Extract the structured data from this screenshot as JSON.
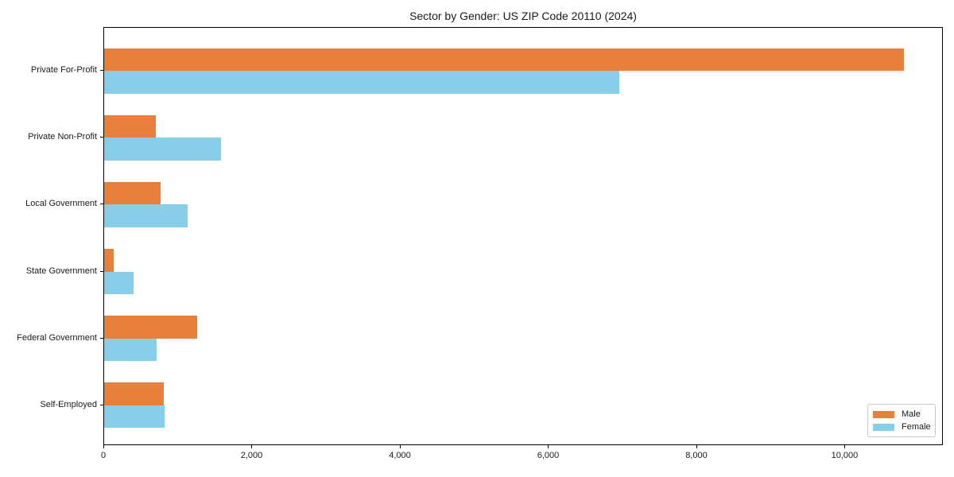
{
  "chart_data": {
    "type": "bar",
    "orientation": "horizontal",
    "title": "Sector by Gender: US ZIP Code 20110 (2024)",
    "categories": [
      "Private For-Profit",
      "Private Non-Profit",
      "Local Government",
      "State Government",
      "Federal Government",
      "Self-Employed"
    ],
    "series": [
      {
        "name": "Male",
        "color": "#E8803C",
        "values": [
          10790,
          700,
          765,
          130,
          1260,
          800
        ]
      },
      {
        "name": "Female",
        "color": "#87CEEB",
        "values": [
          6950,
          1580,
          1130,
          400,
          710,
          820
        ]
      }
    ],
    "xlabel": "",
    "ylabel": "",
    "xlim": [
      0,
      11325
    ],
    "xticks": [
      0,
      2000,
      4000,
      6000,
      8000,
      10000
    ],
    "xtick_labels": [
      "0",
      "2,000",
      "4,000",
      "6,000",
      "8,000",
      "10,000"
    ],
    "grid": false,
    "plot_background": "#ffffff",
    "legend_position": "lower right"
  }
}
